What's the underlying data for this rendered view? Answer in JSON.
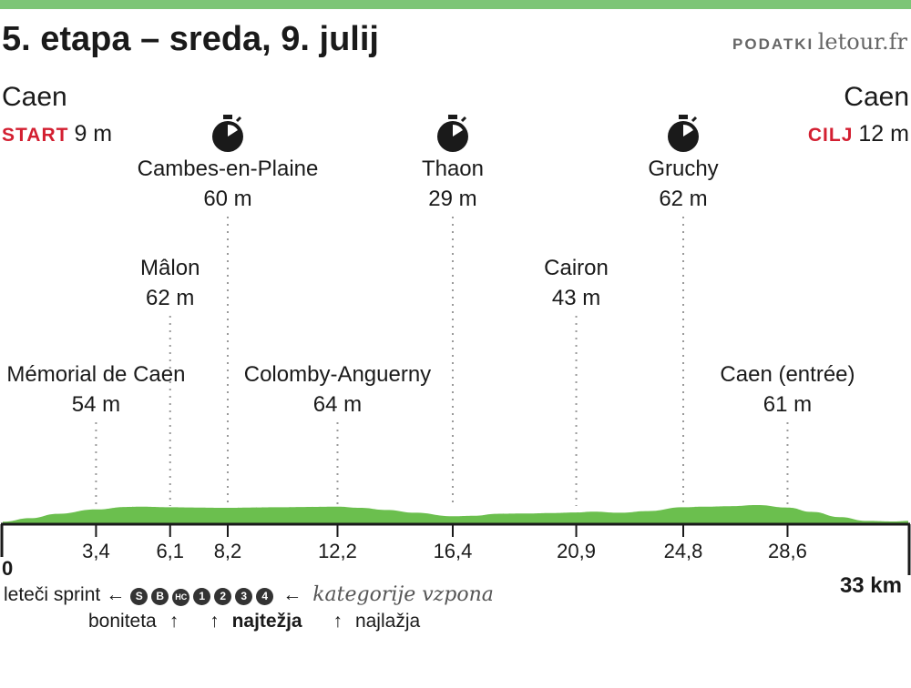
{
  "header": {
    "title": "5. etapa  – sreda, 9. julij",
    "source_label": "PODATKI",
    "source_site": "letour.fr"
  },
  "start": {
    "city": "Caen",
    "tag": "START",
    "altitude": "9 m"
  },
  "finish": {
    "city": "Caen",
    "tag": "CILJ",
    "altitude": "12 m"
  },
  "colors": {
    "terrain": "#6bbf4e",
    "bar": "#7cc576",
    "accent": "#d31f31",
    "dots": "#9a9a9a"
  },
  "chart_data": {
    "type": "area",
    "xlabel": "",
    "ylabel": "",
    "xlim": [
      0,
      33
    ],
    "start_label": "0",
    "end_label": "33 km",
    "x_ticks": [
      {
        "x": 3.4,
        "label": "3,4"
      },
      {
        "x": 6.1,
        "label": "6,1"
      },
      {
        "x": 8.2,
        "label": "8,2"
      },
      {
        "x": 12.2,
        "label": "12,2"
      },
      {
        "x": 16.4,
        "label": "16,4"
      },
      {
        "x": 20.9,
        "label": "20,9"
      },
      {
        "x": 24.8,
        "label": "24,8"
      },
      {
        "x": 28.6,
        "label": "28,6"
      }
    ],
    "waypoints": [
      {
        "name": "Mémorial de Caen",
        "altitude": "54 m",
        "km": 3.4,
        "level": 3,
        "sprint": false
      },
      {
        "name": "Mâlon",
        "altitude": "62 m",
        "km": 6.1,
        "level": 2,
        "sprint": false
      },
      {
        "name": "Cambes-en-Plaine",
        "altitude": "60 m",
        "km": 8.2,
        "level": 1,
        "sprint": true
      },
      {
        "name": "Colomby-Anguerny",
        "altitude": "64 m",
        "km": 12.2,
        "level": 3,
        "sprint": false
      },
      {
        "name": "Thaon",
        "altitude": "29 m",
        "km": 16.4,
        "level": 1,
        "sprint": true
      },
      {
        "name": "Cairon",
        "altitude": "43 m",
        "km": 20.9,
        "level": 2,
        "sprint": false
      },
      {
        "name": "Gruchy",
        "altitude": "62 m",
        "km": 24.8,
        "level": 1,
        "sprint": true
      },
      {
        "name": "Caen (entrée)",
        "altitude": "61 m",
        "km": 28.6,
        "level": 3,
        "sprint": false
      }
    ],
    "profile": {
      "x": [
        0,
        1,
        2,
        3.4,
        4.5,
        5,
        6.1,
        7,
        8.2,
        9,
        10,
        11,
        12.2,
        13,
        14,
        15,
        16.4,
        17.2,
        18,
        19,
        20,
        20.9,
        21.5,
        22.5,
        23.5,
        24.8,
        25.5,
        26.5,
        27.5,
        28.6,
        29.5,
        30.5,
        31.5,
        32.5,
        33
      ],
      "y": [
        9,
        22,
        38,
        54,
        63,
        64,
        62,
        61,
        60,
        61,
        62,
        63,
        64,
        60,
        52,
        42,
        29,
        31,
        38,
        39,
        41,
        43,
        46,
        42,
        48,
        62,
        64,
        66,
        70,
        61,
        45,
        26,
        12,
        10,
        12
      ]
    },
    "ylim": [
      0,
      80
    ]
  },
  "legend": {
    "flying_sprint": "leteči sprint",
    "category_badges": [
      "S",
      "B",
      "HC",
      "1",
      "2",
      "3",
      "4"
    ],
    "climb_categories": "kategorije vzpona",
    "bonus": "boniteta",
    "hardest": "najtežja",
    "easiest": "najlažja"
  }
}
